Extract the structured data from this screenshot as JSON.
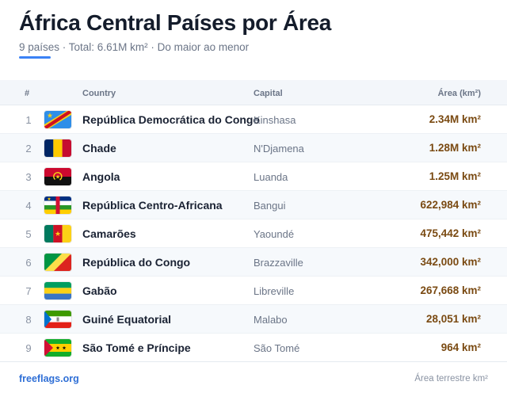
{
  "header": {
    "title": "África Central Países por Área",
    "subtitle": "9 países · Total: 6.61M km² · Do maior ao menor",
    "accent_color": "#3b82f6"
  },
  "table": {
    "columns": {
      "rank": "#",
      "country": "Country",
      "capital": "Capital",
      "area": "Área (km²)"
    },
    "rows": [
      {
        "rank": "1",
        "flag": "flag-cd-icon",
        "country": "República Democrática do Congo",
        "capital": "Kinshasa",
        "area": "2.34M km²"
      },
      {
        "rank": "2",
        "flag": "flag-td-icon",
        "country": "Chade",
        "capital": "N'Djamena",
        "area": "1.28M km²"
      },
      {
        "rank": "3",
        "flag": "flag-ao-icon",
        "country": "Angola",
        "capital": "Luanda",
        "area": "1.25M km²"
      },
      {
        "rank": "4",
        "flag": "flag-cf-icon",
        "country": "República Centro-Africana",
        "capital": "Bangui",
        "area": "622,984 km²"
      },
      {
        "rank": "5",
        "flag": "flag-cm-icon",
        "country": "Camarões",
        "capital": "Yaoundé",
        "area": "475,442 km²"
      },
      {
        "rank": "6",
        "flag": "flag-cg-icon",
        "country": "República do Congo",
        "capital": "Brazzaville",
        "area": "342,000 km²"
      },
      {
        "rank": "7",
        "flag": "flag-ga-icon",
        "country": "Gabão",
        "capital": "Libreville",
        "area": "267,668 km²"
      },
      {
        "rank": "8",
        "flag": "flag-gq-icon",
        "country": "Guiné Equatorial",
        "capital": "Malabo",
        "area": "28,051 km²"
      },
      {
        "rank": "9",
        "flag": "flag-st-icon",
        "country": "São Tomé e Príncipe",
        "capital": "São Tomé",
        "area": "964 km²"
      }
    ]
  },
  "footer": {
    "link": "freeflags.org",
    "note": "Área terrestre km²"
  }
}
